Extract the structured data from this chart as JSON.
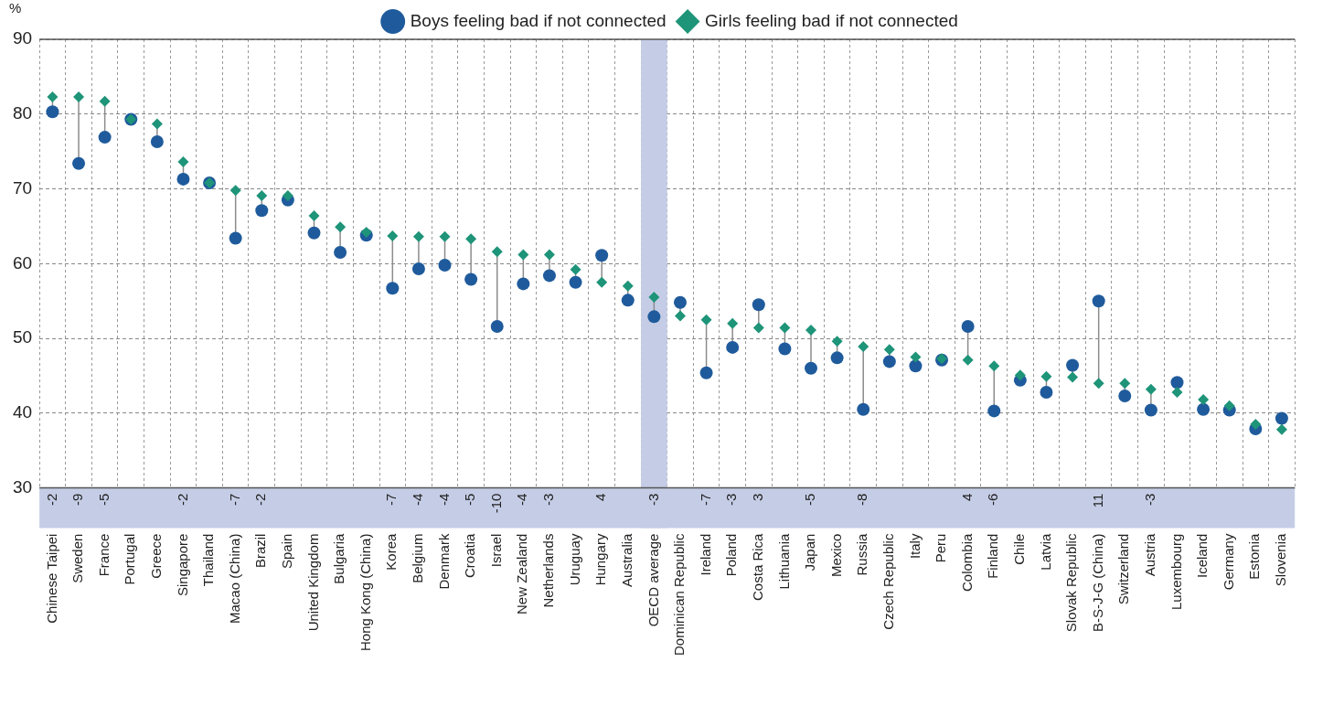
{
  "chart_data": {
    "type": "scatter",
    "ylabel": "%",
    "categories": [
      "Chinese Taipei",
      "Sweden",
      "France",
      "Portugal",
      "Greece",
      "Singapore",
      "Thailand",
      "Macao (China)",
      "Brazil",
      "Spain",
      "United Kingdom",
      "Bulgaria",
      "Hong Kong (China)",
      "Korea",
      "Belgium",
      "Denmark",
      "Croatia",
      "Israel",
      "New Zealand",
      "Netherlands",
      "Uruguay",
      "Hungary",
      "Australia",
      "OECD average",
      "Dominican Republic",
      "Ireland",
      "Poland",
      "Costa Rica",
      "Lithuania",
      "Japan",
      "Mexico",
      "Russia",
      "Czech Republic",
      "Italy",
      "Peru",
      "Colombia",
      "Finland",
      "Chile",
      "Latvia",
      "Slovak Republic",
      "B-S-J-G (China)",
      "Switzerland",
      "Austria",
      "Luxembourg",
      "Iceland",
      "Germany",
      "Estonia",
      "Slovenia"
    ],
    "series": [
      {
        "name": "Boys feeling bad if not connected",
        "color": "#1f5b9c",
        "marker": "circle",
        "values": [
          80.3,
          73.4,
          76.9,
          79.3,
          76.3,
          71.3,
          70.8,
          63.4,
          67.1,
          68.5,
          64.1,
          61.5,
          63.8,
          56.7,
          59.3,
          59.8,
          57.9,
          51.6,
          57.3,
          58.4,
          57.5,
          61.1,
          55.1,
          52.9,
          54.8,
          45.4,
          48.8,
          54.5,
          48.6,
          46.0,
          47.4,
          40.5,
          46.9,
          46.3,
          47.1,
          51.6,
          40.3,
          44.4,
          42.8,
          46.4,
          55.0,
          42.3,
          40.4,
          44.1,
          40.5,
          40.4,
          37.9,
          39.3
        ]
      },
      {
        "name": "Girls feeling bad if not connected",
        "color": "#1e9479",
        "marker": "diamond",
        "values": [
          82.3,
          82.3,
          81.7,
          79.3,
          78.7,
          73.6,
          70.8,
          69.8,
          69.1,
          69.1,
          66.4,
          64.9,
          64.2,
          63.7,
          63.6,
          63.6,
          63.3,
          61.6,
          61.2,
          61.2,
          59.2,
          57.5,
          57.0,
          55.5,
          53.0,
          52.5,
          52.0,
          51.4,
          51.4,
          51.1,
          49.6,
          48.9,
          48.5,
          47.5,
          47.3,
          47.1,
          46.3,
          45.1,
          44.9,
          44.8,
          44.0,
          44.0,
          43.2,
          42.8,
          41.8,
          41.0,
          38.5,
          37.8
        ]
      }
    ],
    "ylim": [
      30,
      90
    ],
    "yticks": [
      30,
      40,
      50,
      60,
      70,
      80,
      90
    ],
    "grid": true,
    "legend": "top",
    "bands": [
      {
        "axis": "x",
        "from": "OECD average",
        "to": "OECD average",
        "color": "#c5cde6"
      }
    ],
    "annotations": [
      "-2",
      "-9",
      "-5",
      null,
      null,
      "-2",
      null,
      "-7",
      "-2",
      null,
      null,
      null,
      null,
      "-7",
      "-4",
      "-4",
      "-5",
      "-10",
      "-4",
      "-3",
      null,
      "4",
      null,
      "-3",
      null,
      "-7",
      "-3",
      "3",
      null,
      "-5",
      null,
      "-8",
      null,
      null,
      null,
      "4",
      "-6",
      null,
      null,
      null,
      "11",
      null,
      "-3",
      null,
      null,
      null,
      null,
      null
    ]
  }
}
